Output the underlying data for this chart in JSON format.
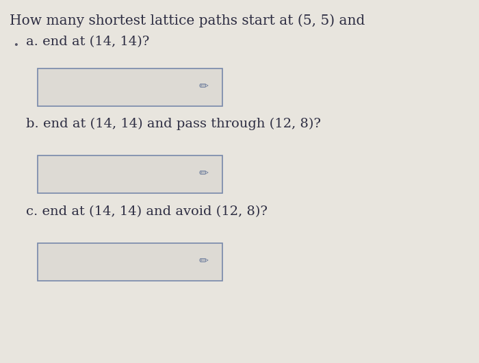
{
  "title_line1": "How many shortest lattice paths start at (5, 5) and",
  "question_a": "a. end at (14, 14)?",
  "question_b": "b. end at (14, 14) and pass through (12, 8)?",
  "question_c": "c. end at (14, 14) and avoid (12, 8)?",
  "background_color": "#e8e5de",
  "box_facecolor": "#e2dedb",
  "box_edgecolor": "#7788aa",
  "text_color": "#2d2d42",
  "title_fontsize": 14.5,
  "question_fontsize": 14.0,
  "bullet_color": "#555566",
  "pencil_color": "#667799"
}
